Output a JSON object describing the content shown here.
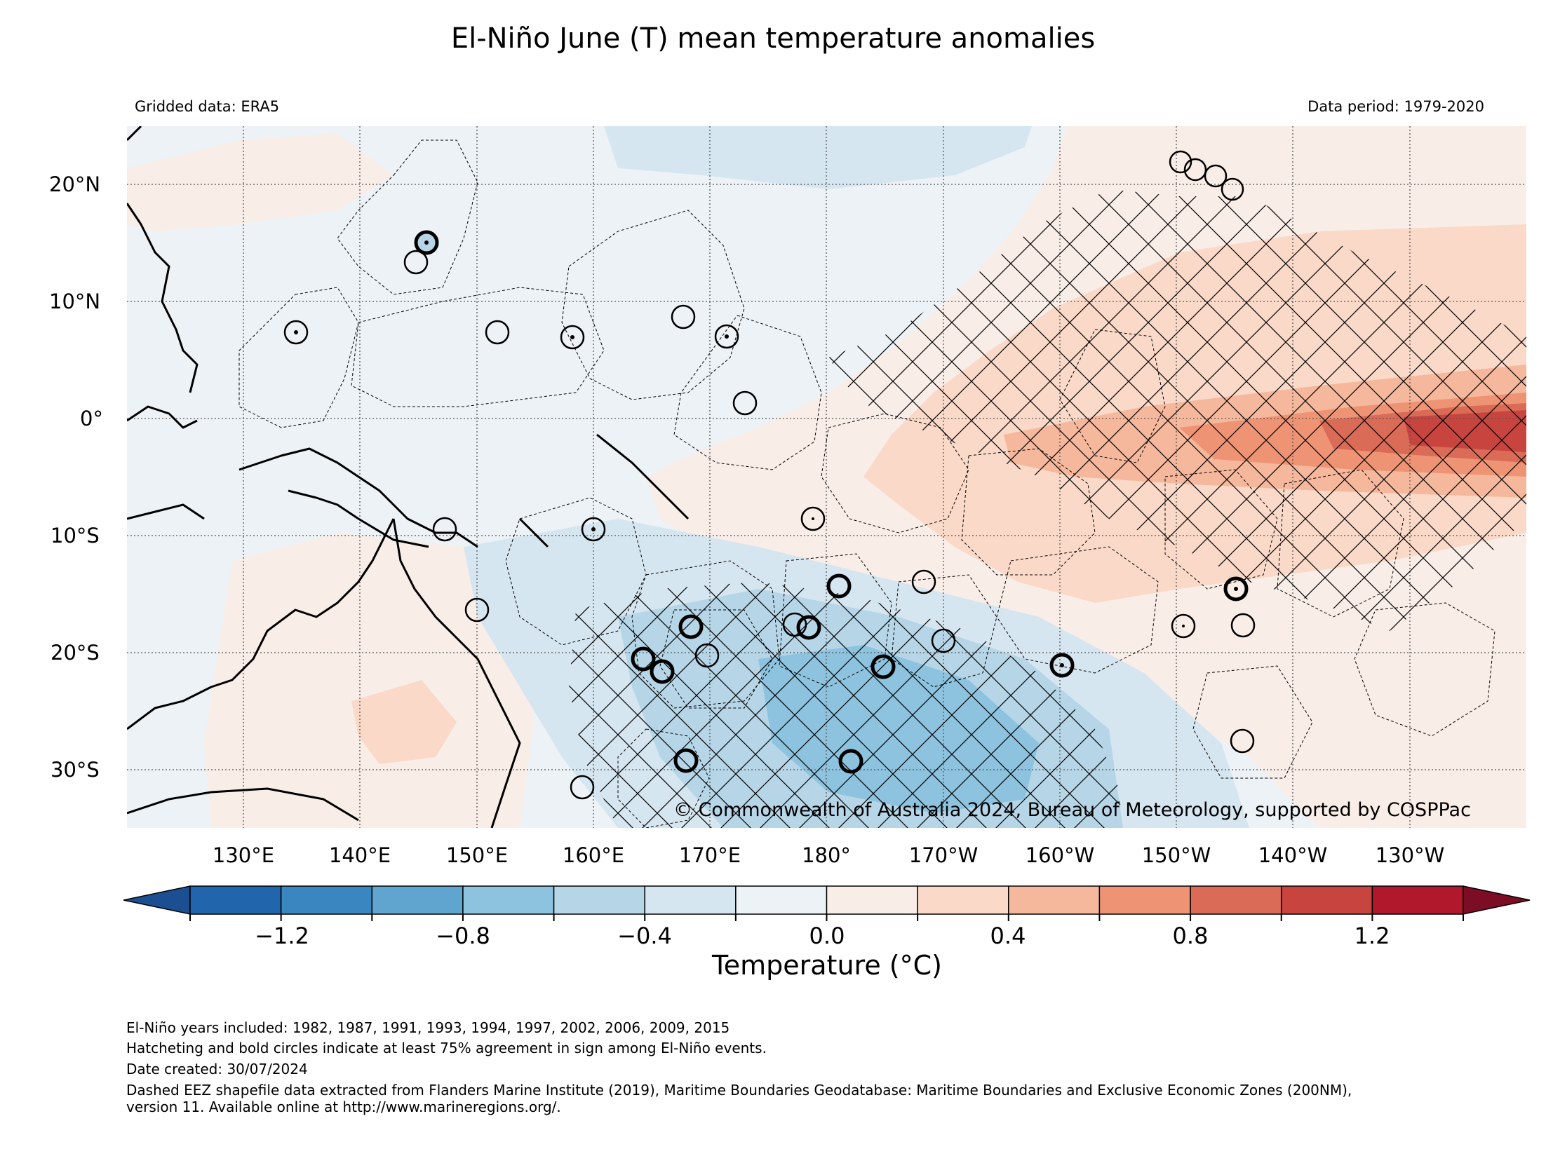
{
  "title": "El-Niño June (T) mean temperature anomalies",
  "gridded_data": "Gridded data: ERA5",
  "data_period": "Data period: 1979-2020",
  "copyright": "© Commonwealth of Australia 2024, Bureau of Meteorology, supported by COSPPac",
  "lon_labels": [
    "130°E",
    "140°E",
    "150°E",
    "160°E",
    "170°E",
    "180°",
    "170°W",
    "160°W",
    "150°W",
    "140°W",
    "130°W"
  ],
  "lat_labels": [
    "20°N",
    "10°N",
    "0°",
    "10°S",
    "20°S",
    "30°S"
  ],
  "colorbar": {
    "label": "Temperature (°C)",
    "tick_labels": [
      "−1.2",
      "−0.8",
      "−0.4",
      "0.0",
      "0.4",
      "0.8",
      "1.2"
    ],
    "colors": [
      "#2166ac",
      "#3a86c0",
      "#5fa5cf",
      "#8dc3de",
      "#b6d6e8",
      "#d6e6f0",
      "#edf2f6",
      "#f9ede7",
      "#fad9c8",
      "#f6b89c",
      "#ee9474",
      "#da6b56",
      "#c8443f",
      "#b2182b"
    ],
    "under_color": "#1b4f92",
    "over_color": "#7d0d25"
  },
  "notes": [
    "El-Niño years included: 1982, 1987, 1991, 1993, 1994, 1997, 2002, 2006, 2009, 2015",
    "Hatcheting and bold circles indicate at least 75% agreement in sign among El-Niño events.",
    "Date created: 30/07/2024",
    "Dashed EEZ shapefile data extracted from Flanders Marine Institute (2019), Maritime Boundaries Geodatabase: Maritime Boundaries and Exclusive Economic Zones (200NM),",
    "version 11. Available online at http://www.marineregions.org/."
  ],
  "map_data": {
    "lon_range": [
      120,
      240
    ],
    "lat_range": [
      -35,
      25
    ],
    "gridlines": true,
    "colors": {
      "neutral_ocean": "#edf2f6",
      "light_warm": "#f9ede7",
      "warm": "#fad9c8",
      "warmer": "#f6b89c",
      "warm_core": "#ee9474",
      "hot_core": "#da6b56",
      "hottest": "#c8443f",
      "light_cool": "#d6e6f0",
      "cool": "#b6d6e8",
      "coast": "#000000"
    }
  }
}
